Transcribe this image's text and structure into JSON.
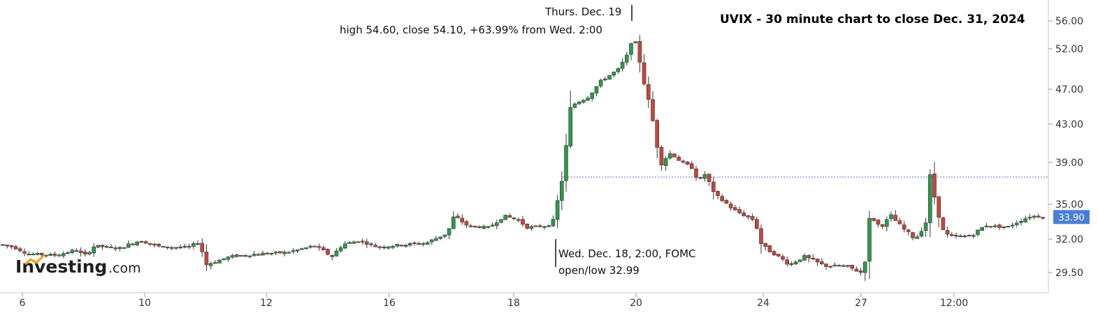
{
  "chart_data": {
    "type": "candlestick",
    "title": "UVIX - 30 minute chart to close Dec. 31, 2024",
    "y_axis": {
      "side": "right",
      "ticks": [
        "56.00",
        "52.00",
        "47.00",
        "43.00",
        "39.00",
        "35.00",
        "32.00",
        "29.50"
      ],
      "tick_values": [
        56.0,
        52.0,
        47.0,
        43.0,
        39.0,
        35.0,
        32.0,
        29.5
      ]
    },
    "x_axis": {
      "ticks": [
        "6",
        "10",
        "12",
        "16",
        "18",
        "20",
        "24",
        "27",
        "12:00"
      ]
    },
    "current_price": {
      "label": "33.90",
      "value": 33.9
    },
    "reference_line": {
      "value": 37.6,
      "color": "#4a6fd0",
      "style": "dotted"
    },
    "annotations": {
      "high": {
        "line1": "Thurs. Dec. 19",
        "line2": "high 54.60, close 54.10, +63.99% from Wed. 2:00"
      },
      "low": {
        "line1": "Wed. Dec. 18, 2:00, FOMC",
        "line2": "open/low 32.99"
      }
    },
    "colors": {
      "up": "#2e9a4c",
      "down": "#c8453c",
      "wick": "#333333",
      "price_tag": "#4a7fd8"
    },
    "anchors": [
      [
        0,
        31.6
      ],
      [
        20,
        31.4
      ],
      [
        40,
        30.9
      ],
      [
        80,
        30.8
      ],
      [
        110,
        31.2
      ],
      [
        120,
        30.7
      ],
      [
        135,
        31.5
      ],
      [
        170,
        31.3
      ],
      [
        200,
        31.9
      ],
      [
        230,
        31.4
      ],
      [
        270,
        31.4
      ],
      [
        285,
        31.8
      ],
      [
        295,
        30.1
      ],
      [
        330,
        30.7
      ],
      [
        370,
        30.9
      ],
      [
        410,
        31.0
      ],
      [
        450,
        31.5
      ],
      [
        475,
        30.7
      ],
      [
        490,
        31.6
      ],
      [
        515,
        31.9
      ],
      [
        540,
        31.4
      ],
      [
        580,
        31.6
      ],
      [
        610,
        31.7
      ],
      [
        640,
        32.5
      ],
      [
        650,
        34.0
      ],
      [
        670,
        33.1
      ],
      [
        700,
        33.0
      ],
      [
        720,
        34.0
      ],
      [
        740,
        33.7
      ],
      [
        755,
        33.0
      ],
      [
        790,
        33.2
      ],
      [
        797,
        35.0
      ],
      [
        807,
        38.5
      ],
      [
        817,
        45.0
      ],
      [
        825,
        45.5
      ],
      [
        840,
        46.0
      ],
      [
        860,
        48.0
      ],
      [
        885,
        49.5
      ],
      [
        900,
        51.5
      ],
      [
        905,
        54.3
      ],
      [
        912,
        52.0
      ],
      [
        925,
        46.5
      ],
      [
        935,
        43.0
      ],
      [
        945,
        39.0
      ],
      [
        960,
        40.0
      ],
      [
        975,
        39.0
      ],
      [
        990,
        38.5
      ],
      [
        1000,
        37.2
      ],
      [
        1010,
        38.0
      ],
      [
        1020,
        36.0
      ],
      [
        1035,
        35.3
      ],
      [
        1050,
        34.5
      ],
      [
        1080,
        33.6
      ],
      [
        1090,
        31.5
      ],
      [
        1105,
        31.0
      ],
      [
        1130,
        30.1
      ],
      [
        1150,
        30.7
      ],
      [
        1180,
        30.0
      ],
      [
        1210,
        30.0
      ],
      [
        1232,
        29.5
      ],
      [
        1240,
        30.9
      ],
      [
        1245,
        34.0
      ],
      [
        1260,
        33.0
      ],
      [
        1275,
        34.0
      ],
      [
        1290,
        33.0
      ],
      [
        1310,
        32.0
      ],
      [
        1325,
        33.5
      ],
      [
        1330,
        37.5
      ],
      [
        1340,
        35.0
      ],
      [
        1350,
        32.5
      ],
      [
        1360,
        32.2
      ],
      [
        1390,
        32.3
      ],
      [
        1410,
        33.2
      ],
      [
        1440,
        33.0
      ],
      [
        1460,
        33.6
      ],
      [
        1475,
        34.0
      ],
      [
        1495,
        33.9
      ]
    ]
  },
  "logo": {
    "name": "Investing",
    "suffix": ".com"
  }
}
